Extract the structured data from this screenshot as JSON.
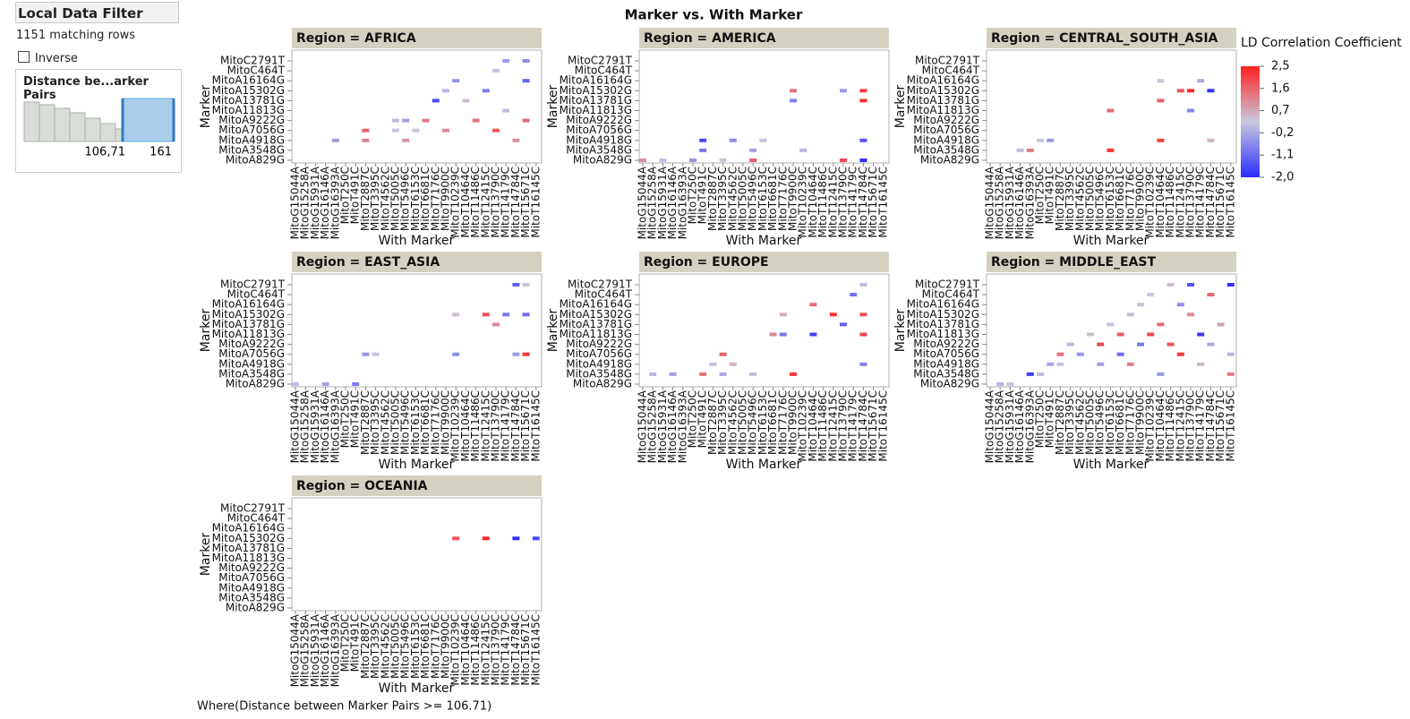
{
  "filter": {
    "title": "Local Data Filter",
    "matching": "1151 matching rows",
    "inverse": "Inverse",
    "column": "Distance be...arker Pairs",
    "low": "106,71",
    "high": "161"
  },
  "where": "Where(Distance between Marker Pairs >= 106.71)",
  "chart_data": {
    "type": "heatmap",
    "title": "Marker vs. With Marker",
    "x_label": "With Marker",
    "y_label": "Marker",
    "y_categories": [
      "MitoC2791T",
      "MitoC464T",
      "MitoA16164G",
      "MitoA15302G",
      "MitoA13781G",
      "MitoA11813G",
      "MitoA9222G",
      "MitoA7056G",
      "MitoA4918G",
      "MitoA3548G",
      "MitoA829G"
    ],
    "x_categories": [
      "MitoG15044A",
      "MitoG15258A",
      "MitoG15931A",
      "MitoG16146A",
      "MitoG16393A",
      "MitoT250C",
      "MitoT491C",
      "MitoT2887C",
      "MitoT3395C",
      "MitoT4562C",
      "MitoT5005C",
      "MitoT5496C",
      "MitoT6153C",
      "MitoT6681C",
      "MitoT7176C",
      "MitoT9900C",
      "MitoT10239C",
      "MitoT10464C",
      "MitoT11486C",
      "MitoT12415C",
      "MitoT13790C",
      "MitoT14179C",
      "MitoT14784C",
      "MitoT15671C",
      "MitoT16145C"
    ],
    "colorbar": {
      "title": "LD Correlation Coefficient",
      "lim": [
        -2.0,
        2.5
      ],
      "colors": [
        "#2b2bff",
        "#c8c9dc",
        "#ff2020"
      ],
      "ticks": [
        {
          "value": 2.5,
          "label": "2,5"
        },
        {
          "value": 1.6,
          "label": "1,6"
        },
        {
          "value": 0.7,
          "label": "0,7"
        },
        {
          "value": -0.2,
          "label": "-0,2"
        },
        {
          "value": -1.1,
          "label": "-1,1"
        },
        {
          "value": -2.0,
          "label": "-2,0"
        }
      ]
    },
    "panels": [
      {
        "title": "Region = AFRICA",
        "cells": [
          {
            "x": "MitoG16393A",
            "y": "MitoA4918G",
            "value": -0.4
          },
          {
            "x": "MitoT2887C",
            "y": "MitoA7056G",
            "value": 1.6
          },
          {
            "x": "MitoT2887C",
            "y": "MitoA4918G",
            "value": 1.2
          },
          {
            "x": "MitoT5005C",
            "y": "MitoA9222G",
            "value": 0.1
          },
          {
            "x": "MitoT5005C",
            "y": "MitoA7056G",
            "value": 0.3
          },
          {
            "x": "MitoT5496C",
            "y": "MitoA9222G",
            "value": -0.3
          },
          {
            "x": "MitoT5496C",
            "y": "MitoA4918G",
            "value": 0.9
          },
          {
            "x": "MitoT6153C",
            "y": "MitoA7056G",
            "value": 0.2
          },
          {
            "x": "MitoT6681C",
            "y": "MitoA9222G",
            "value": 1.3
          },
          {
            "x": "MitoT7176C",
            "y": "MitoA13781G",
            "value": -1.5
          },
          {
            "x": "MitoT9900C",
            "y": "MitoA7056G",
            "value": 1.1
          },
          {
            "x": "MitoT9900C",
            "y": "MitoA15302G",
            "value": 0.0
          },
          {
            "x": "MitoT10239C",
            "y": "MitoA16164G",
            "value": -0.5
          },
          {
            "x": "MitoT10464C",
            "y": "MitoA13781G",
            "value": 0.4
          },
          {
            "x": "MitoT11486C",
            "y": "MitoA9222G",
            "value": 1.4
          },
          {
            "x": "MitoT12415C",
            "y": "MitoA15302G",
            "value": -0.8
          },
          {
            "x": "MitoT13790C",
            "y": "MitoC464T",
            "value": 0.2
          },
          {
            "x": "MitoT13790C",
            "y": "MitoA7056G",
            "value": 1.8
          },
          {
            "x": "MitoT14179C",
            "y": "MitoA11813G",
            "value": 0.1
          },
          {
            "x": "MitoT14179C",
            "y": "MitoC2791T",
            "value": -0.4
          },
          {
            "x": "MitoT14784C",
            "y": "MitoA4918G",
            "value": 1.0
          },
          {
            "x": "MitoT15671C",
            "y": "MitoC2791T",
            "value": -0.6
          },
          {
            "x": "MitoT15671C",
            "y": "MitoA9222G",
            "value": 1.5
          },
          {
            "x": "MitoT15671C",
            "y": "MitoA16164G",
            "value": -1.2
          }
        ]
      },
      {
        "title": "Region = AMERICA",
        "cells": [
          {
            "x": "MitoG15044A",
            "y": "MitoA829G",
            "value": 1.0
          },
          {
            "x": "MitoG15931A",
            "y": "MitoA829G",
            "value": 0.1
          },
          {
            "x": "MitoT250C",
            "y": "MitoA829G",
            "value": -0.5
          },
          {
            "x": "MitoT491C",
            "y": "MitoA4918G",
            "value": -1.6
          },
          {
            "x": "MitoT491C",
            "y": "MitoA3548G",
            "value": -0.9
          },
          {
            "x": "MitoT3395C",
            "y": "MitoA829G",
            "value": 0.3
          },
          {
            "x": "MitoT4562C",
            "y": "MitoA4918G",
            "value": -0.6
          },
          {
            "x": "MitoT5496C",
            "y": "MitoA829G",
            "value": 1.7
          },
          {
            "x": "MitoT5496C",
            "y": "MitoA3548G",
            "value": -0.3
          },
          {
            "x": "MitoT6153C",
            "y": "MitoA4918G",
            "value": 0.2
          },
          {
            "x": "MitoT9900C",
            "y": "MitoA15302G",
            "value": 1.4
          },
          {
            "x": "MitoT9900C",
            "y": "MitoA13781G",
            "value": -0.8
          },
          {
            "x": "MitoT10239C",
            "y": "MitoA3548G",
            "value": 0.0
          },
          {
            "x": "MitoT13790C",
            "y": "MitoA15302G",
            "value": -0.4
          },
          {
            "x": "MitoT13790C",
            "y": "MitoA829G",
            "value": 1.9
          },
          {
            "x": "MitoT14784C",
            "y": "MitoA15302G",
            "value": 2.1
          },
          {
            "x": "MitoT14784C",
            "y": "MitoA13781G",
            "value": 2.3
          },
          {
            "x": "MitoT14784C",
            "y": "MitoA4918G",
            "value": -1.4
          },
          {
            "x": "MitoT14784C",
            "y": "MitoA829G",
            "value": -1.9
          }
        ]
      },
      {
        "title": "Region = CENTRAL_SOUTH_ASIA",
        "cells": [
          {
            "x": "MitoG16146A",
            "y": "MitoA3548G",
            "value": 0.1
          },
          {
            "x": "MitoG16393A",
            "y": "MitoA3548G",
            "value": 1.3
          },
          {
            "x": "MitoT250C",
            "y": "MitoA4918G",
            "value": 0.2
          },
          {
            "x": "MitoT491C",
            "y": "MitoA4918G",
            "value": -0.4
          },
          {
            "x": "MitoT6153C",
            "y": "MitoA11813G",
            "value": 1.5
          },
          {
            "x": "MitoT6153C",
            "y": "MitoA3548G",
            "value": 2.2
          },
          {
            "x": "MitoT10464C",
            "y": "MitoA16164G",
            "value": 0.3
          },
          {
            "x": "MitoT10464C",
            "y": "MitoA13781G",
            "value": 1.6
          },
          {
            "x": "MitoT10464C",
            "y": "MitoA4918G",
            "value": 2.1
          },
          {
            "x": "MitoT12415C",
            "y": "MitoA15302G",
            "value": 1.8
          },
          {
            "x": "MitoT13790C",
            "y": "MitoA15302G",
            "value": 2.4
          },
          {
            "x": "MitoT13790C",
            "y": "MitoA11813G",
            "value": -0.7
          },
          {
            "x": "MitoT14179C",
            "y": "MitoA16164G",
            "value": -0.2
          },
          {
            "x": "MitoT14784C",
            "y": "MitoA15302G",
            "value": -1.9
          },
          {
            "x": "MitoT14784C",
            "y": "MitoA4918G",
            "value": 0.5
          }
        ]
      },
      {
        "title": "Region = EAST_ASIA",
        "cells": [
          {
            "x": "MitoG15044A",
            "y": "MitoA829G",
            "value": 0.1
          },
          {
            "x": "MitoG16146A",
            "y": "MitoA829G",
            "value": -0.3
          },
          {
            "x": "MitoT491C",
            "y": "MitoA829G",
            "value": -0.8
          },
          {
            "x": "MitoT2887C",
            "y": "MitoA7056G",
            "value": -0.5
          },
          {
            "x": "MitoT3395C",
            "y": "MitoA7056G",
            "value": 0.2
          },
          {
            "x": "MitoT10239C",
            "y": "MitoA15302G",
            "value": 0.4
          },
          {
            "x": "MitoT10239C",
            "y": "MitoA7056G",
            "value": -0.6
          },
          {
            "x": "MitoT12415C",
            "y": "MitoA15302G",
            "value": 1.9
          },
          {
            "x": "MitoT13790C",
            "y": "MitoA13781G",
            "value": 1.1
          },
          {
            "x": "MitoT14179C",
            "y": "MitoA15302G",
            "value": -0.9
          },
          {
            "x": "MitoT14784C",
            "y": "MitoA7056G",
            "value": -0.4
          },
          {
            "x": "MitoT14784C",
            "y": "MitoC2791T",
            "value": -1.3
          },
          {
            "x": "MitoT15671C",
            "y": "MitoA7056G",
            "value": 2.2
          },
          {
            "x": "MitoT15671C",
            "y": "MitoA15302G",
            "value": -1.1
          },
          {
            "x": "MitoT15671C",
            "y": "MitoC2791T",
            "value": 0.3
          }
        ]
      },
      {
        "title": "Region = EUROPE",
        "cells": [
          {
            "x": "MitoG15258A",
            "y": "MitoA3548G",
            "value": 0.0
          },
          {
            "x": "MitoG16146A",
            "y": "MitoA3548G",
            "value": -0.3
          },
          {
            "x": "MitoT491C",
            "y": "MitoA3548G",
            "value": 1.4
          },
          {
            "x": "MitoT2887C",
            "y": "MitoA4918G",
            "value": 0.2
          },
          {
            "x": "MitoT3395C",
            "y": "MitoA7056G",
            "value": 1.6
          },
          {
            "x": "MitoT3395C",
            "y": "MitoA3548G",
            "value": -0.2
          },
          {
            "x": "MitoT4562C",
            "y": "MitoA4918G",
            "value": 0.5
          },
          {
            "x": "MitoT5496C",
            "y": "MitoA3548G",
            "value": 0.1
          },
          {
            "x": "MitoT6681C",
            "y": "MitoA11813G",
            "value": 1.1
          },
          {
            "x": "MitoT7176C",
            "y": "MitoA11813G",
            "value": -0.9
          },
          {
            "x": "MitoT7176C",
            "y": "MitoA15302G",
            "value": 0.6
          },
          {
            "x": "MitoT9900C",
            "y": "MitoA3548G",
            "value": 2.2
          },
          {
            "x": "MitoT10464C",
            "y": "MitoA16164G",
            "value": 1.5
          },
          {
            "x": "MitoT10464C",
            "y": "MitoA11813G",
            "value": -1.7
          },
          {
            "x": "MitoT12415C",
            "y": "MitoA15302G",
            "value": 2.3
          },
          {
            "x": "MitoT13790C",
            "y": "MitoA13781G",
            "value": -1.2
          },
          {
            "x": "MitoT14179C",
            "y": "MitoC464T",
            "value": -1.0
          },
          {
            "x": "MitoT14784C",
            "y": "MitoC2791T",
            "value": 0.1
          },
          {
            "x": "MitoT14784C",
            "y": "MitoA15302G",
            "value": 1.9
          },
          {
            "x": "MitoT14784C",
            "y": "MitoA11813G",
            "value": 2.0
          },
          {
            "x": "MitoT14784C",
            "y": "MitoA4918G",
            "value": -0.7
          }
        ]
      },
      {
        "title": "Region = MIDDLE_EAST",
        "cells": [
          {
            "x": "MitoG15258A",
            "y": "MitoA829G",
            "value": 0.0
          },
          {
            "x": "MitoG15931A",
            "y": "MitoA829G",
            "value": 0.2
          },
          {
            "x": "MitoG16393A",
            "y": "MitoA3548G",
            "value": -1.7
          },
          {
            "x": "MitoT250C",
            "y": "MitoA3548G",
            "value": 0.1
          },
          {
            "x": "MitoT491C",
            "y": "MitoA4918G",
            "value": -0.2
          },
          {
            "x": "MitoT2887C",
            "y": "MitoA7056G",
            "value": 1.4
          },
          {
            "x": "MitoT2887C",
            "y": "MitoA4918G",
            "value": 0.3
          },
          {
            "x": "MitoT3395C",
            "y": "MitoA9222G",
            "value": 0.0
          },
          {
            "x": "MitoT4562C",
            "y": "MitoA7056G",
            "value": -0.5
          },
          {
            "x": "MitoT5005C",
            "y": "MitoA11813G",
            "value": 0.4
          },
          {
            "x": "MitoT5496C",
            "y": "MitoA9222G",
            "value": 1.9
          },
          {
            "x": "MitoT5496C",
            "y": "MitoA4918G",
            "value": -0.3
          },
          {
            "x": "MitoT6153C",
            "y": "MitoA13781G",
            "value": 0.2
          },
          {
            "x": "MitoT6681C",
            "y": "MitoA11813G",
            "value": 1.7
          },
          {
            "x": "MitoT6681C",
            "y": "MitoA7056G",
            "value": -1.1
          },
          {
            "x": "MitoT7176C",
            "y": "MitoA15302G",
            "value": 0.1
          },
          {
            "x": "MitoT7176C",
            "y": "MitoA4918G",
            "value": 1.2
          },
          {
            "x": "MitoT9900C",
            "y": "MitoA16164G",
            "value": 0.3
          },
          {
            "x": "MitoT9900C",
            "y": "MitoA9222G",
            "value": -0.9
          },
          {
            "x": "MitoT10239C",
            "y": "MitoC464T",
            "value": 0.2
          },
          {
            "x": "MitoT10239C",
            "y": "MitoA11813G",
            "value": 2.0
          },
          {
            "x": "MitoT10464C",
            "y": "MitoA13781G",
            "value": 1.5
          },
          {
            "x": "MitoT10464C",
            "y": "MitoA3548G",
            "value": -0.4
          },
          {
            "x": "MitoT11486C",
            "y": "MitoC2791T",
            "value": 0.4
          },
          {
            "x": "MitoT11486C",
            "y": "MitoA9222G",
            "value": 1.8
          },
          {
            "x": "MitoT12415C",
            "y": "MitoA16164G",
            "value": -0.6
          },
          {
            "x": "MitoT12415C",
            "y": "MitoA7056G",
            "value": 2.2
          },
          {
            "x": "MitoT13790C",
            "y": "MitoC2791T",
            "value": -1.4
          },
          {
            "x": "MitoT13790C",
            "y": "MitoA15302G",
            "value": 1.1
          },
          {
            "x": "MitoT14179C",
            "y": "MitoA11813G",
            "value": -1.8
          },
          {
            "x": "MitoT14179C",
            "y": "MitoA4918G",
            "value": 0.5
          },
          {
            "x": "MitoT14784C",
            "y": "MitoC464T",
            "value": 1.6
          },
          {
            "x": "MitoT14784C",
            "y": "MitoA9222G",
            "value": -0.2
          },
          {
            "x": "MitoT15671C",
            "y": "MitoA13781G",
            "value": 0.8
          },
          {
            "x": "MitoT16145C",
            "y": "MitoC2791T",
            "value": -1.9
          },
          {
            "x": "MitoT16145C",
            "y": "MitoA7056G",
            "value": 0.0
          },
          {
            "x": "MitoT16145C",
            "y": "MitoA3548G",
            "value": 1.3
          }
        ]
      },
      {
        "title": "Region = OCEANIA",
        "cells": [
          {
            "x": "MitoT10239C",
            "y": "MitoA15302G",
            "value": 1.8
          },
          {
            "x": "MitoT12415C",
            "y": "MitoA15302G",
            "value": 2.4
          },
          {
            "x": "MitoT14784C",
            "y": "MitoA15302G",
            "value": -1.9
          },
          {
            "x": "MitoT16145C",
            "y": "MitoA15302G",
            "value": -1.6
          }
        ]
      }
    ]
  }
}
